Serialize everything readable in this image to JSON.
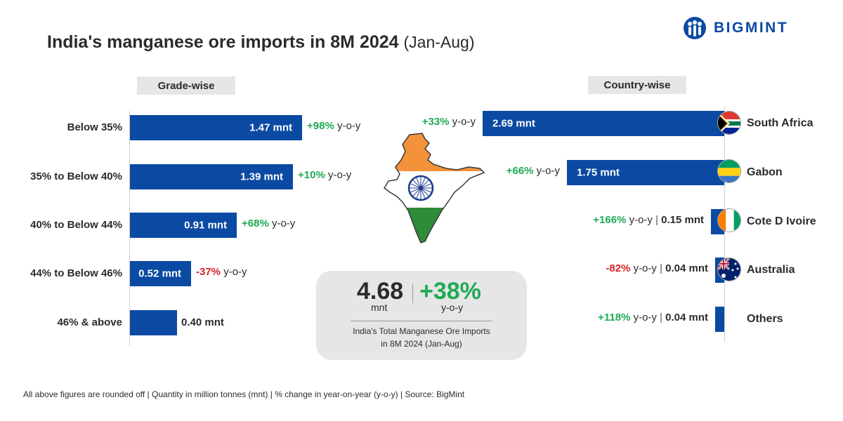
{
  "header": {
    "title": "India's manganese ore imports in 8M 2024",
    "subtitle": "(Jan-Aug)"
  },
  "logo": {
    "text": "BIGMINT",
    "icon": "people-logo-icon"
  },
  "colors": {
    "bar": "#0b4aa3",
    "positive": "#1faa55",
    "negative": "#d8232a",
    "tag_bg": "#e6e6e6"
  },
  "chart_data": [
    {
      "type": "bar",
      "orientation": "horizontal",
      "section_label": "Grade-wise",
      "unit": "mnt",
      "categories": [
        "Below 35%",
        "35% to Below 40%",
        "40% to Below 44%",
        "44% to Below 46%",
        "46% & above"
      ],
      "values": [
        1.47,
        1.39,
        0.91,
        0.52,
        0.4
      ],
      "value_labels": [
        "1.47 mnt",
        "1.39 mnt",
        "0.91 mnt",
        "0.52 mnt",
        "0.40 mnt"
      ],
      "yoy_labels": [
        "+98%",
        "+10%",
        "+68%",
        "-37%",
        ""
      ],
      "yoy_suffix": "y-o-y"
    },
    {
      "type": "bar",
      "orientation": "horizontal",
      "direction": "right-to-left",
      "section_label": "Country-wise",
      "unit": "mnt",
      "categories": [
        "South Africa",
        "Gabon",
        "Cote D Ivoire",
        "Australia",
        "Others"
      ],
      "values": [
        2.69,
        1.75,
        0.15,
        0.04,
        0.04
      ],
      "value_labels": [
        "2.69 mnt",
        "1.75 mnt",
        "0.15 mnt",
        "0.04 mnt",
        "0.04 mnt"
      ],
      "yoy_labels": [
        "+33%",
        "+66%",
        "+166%",
        "-82%",
        "+118%"
      ],
      "yoy_suffix": "y-o-y",
      "flags": [
        "south-africa-flag-icon",
        "gabon-flag-icon",
        "cote-divoire-flag-icon",
        "australia-flag-icon",
        ""
      ]
    }
  ],
  "summary": {
    "total": "4.68",
    "total_unit": "mnt",
    "change": "+38%",
    "change_unit": "y-o-y",
    "desc_line1": "India's Total Manganese Ore Imports",
    "desc_line2": "in 8M 2024 (Jan-Aug)"
  },
  "map": {
    "icon": "india-map-icon"
  },
  "footer": {
    "note": "All above figures are rounded off | Quantity in million tonnes (mnt) | % change in year-on-year (y-o-y) | Source: BigMint"
  }
}
